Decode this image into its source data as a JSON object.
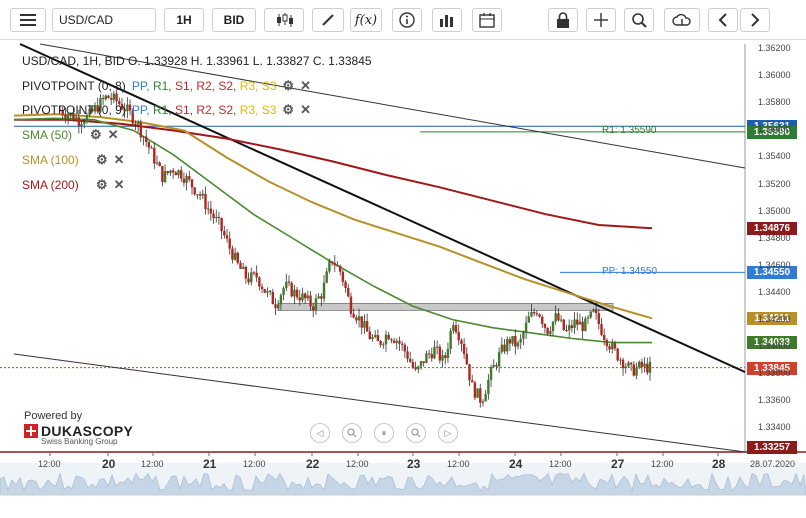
{
  "toolbar": {
    "symbol": "USD/CAD",
    "timeframe": "1H",
    "price_side": "BID",
    "fx_label": "f(x)"
  },
  "ohlc_text": "USD/CAD, 1H, BID   O. 1.33928 H. 1.33961 L. 1.33827 C. 1.33845",
  "legend": {
    "pivot1_title": "PIVOTPOINT (0, 8)",
    "pivot2_title": "PIVOTPOINT (0, 9)",
    "pivot_items": [
      "PP",
      "R1",
      "S1",
      "R2",
      "S2",
      "R3",
      "S3"
    ],
    "pivot_colors": [
      "#2f7bd6",
      "#2e7d32",
      "#c62828",
      "#c62828",
      "#c62828",
      "#e6b800",
      "#e6b800"
    ],
    "sma50": "SMA (50)",
    "sma100": "SMA (100)",
    "sma200": "SMA (200)",
    "sma50_color": "#4a8a2e",
    "sma100_color": "#b8902a",
    "sma200_color": "#a01818"
  },
  "branding": {
    "powered_by": "Powered by",
    "name": "DUKASCOPY",
    "sub": "Swiss Banking Group"
  },
  "pivot_labels": {
    "r1": "R1: 1.35590",
    "pp": "PP: 1.34550"
  },
  "price_badges": [
    {
      "value": "1.35631",
      "price": 1.35631,
      "color": "#1f5fb0"
    },
    {
      "value": "1.35590",
      "price": 1.3559,
      "color": "#2e7d32"
    },
    {
      "value": "1.34876",
      "price": 1.34876,
      "color": "#8b1a1a"
    },
    {
      "value": "1.34550",
      "price": 1.3455,
      "color": "#2f7bd6"
    },
    {
      "value": "1.34211",
      "price": 1.34211,
      "color": "#b8902a"
    },
    {
      "value": "1.34033",
      "price": 1.34033,
      "color": "#3f7a2a"
    },
    {
      "value": "1.33845",
      "price": 1.33845,
      "color": "#d0402a"
    },
    {
      "value": "1.33257",
      "price": 1.33257,
      "color": "#8b1a1a"
    }
  ],
  "chart_data": {
    "type": "candlestick",
    "symbol": "USD/CAD",
    "timeframe": "1H",
    "ylim": [
      1.3322,
      1.3624
    ],
    "y_ticks": [
      "1.33400",
      "1.33600",
      "1.33800",
      "1.34000",
      "1.34200",
      "1.34400",
      "1.34600",
      "1.34800",
      "1.35000",
      "1.35200",
      "1.35400",
      "1.35600",
      "1.35800",
      "1.36000",
      "1.36200"
    ],
    "x_ticks": [
      "12:00",
      "20",
      "12:00",
      "21",
      "12:00",
      "22",
      "12:00",
      "23",
      "12:00",
      "24",
      "12:00",
      "27",
      "12:00",
      "28"
    ],
    "x_ticks_major": [
      "20",
      "21",
      "22",
      "23",
      "24",
      "27",
      "28"
    ],
    "date_label": "28.07.2020",
    "close_path": [
      1.3575,
      1.3572,
      1.3568,
      1.357,
      1.3578,
      1.3585,
      1.3582,
      1.3576,
      1.3568,
      1.3555,
      1.354,
      1.3525,
      1.3532,
      1.3528,
      1.352,
      1.3512,
      1.35,
      1.349,
      1.3475,
      1.346,
      1.345,
      1.3452,
      1.344,
      1.3432,
      1.3445,
      1.344,
      1.3436,
      1.343,
      1.344,
      1.3465,
      1.3455,
      1.343,
      1.342,
      1.3408,
      1.3402,
      1.341,
      1.3405,
      1.3395,
      1.338,
      1.3392,
      1.3398,
      1.3388,
      1.342,
      1.3402,
      1.337,
      1.336,
      1.338,
      1.3395,
      1.3405,
      1.34,
      1.342,
      1.3428,
      1.3412,
      1.3422,
      1.341,
      1.3418,
      1.3415,
      1.3425,
      1.341,
      1.3398,
      1.339,
      1.3382,
      1.3385,
      1.33845
    ],
    "sma50": [
      1.3568,
      1.3569,
      1.3568,
      1.356,
      1.3542,
      1.352,
      1.3498,
      1.348,
      1.3462,
      1.3445,
      1.343,
      1.342,
      1.3414,
      1.341,
      1.3406,
      1.3403,
      1.3403
    ],
    "sma100": [
      1.3571,
      1.3572,
      1.357,
      1.3566,
      1.356,
      1.354,
      1.3522,
      1.3507,
      1.3494,
      1.3484,
      1.3474,
      1.3462,
      1.345,
      1.344,
      1.343,
      1.3421
    ],
    "sma200": [
      1.3568,
      1.3568,
      1.3565,
      1.356,
      1.3554,
      1.3546,
      1.3537,
      1.3527,
      1.3518,
      1.3508,
      1.3498,
      1.349,
      1.34876
    ],
    "current_price": 1.33845
  }
}
